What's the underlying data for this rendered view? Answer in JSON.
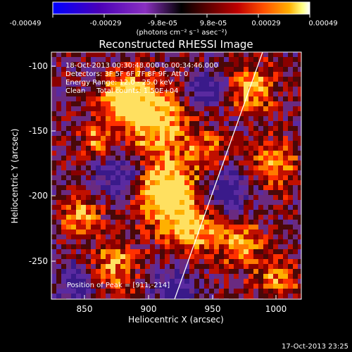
{
  "colorbar": {
    "ticks": [
      "-0.00049",
      "-0.00029",
      "-9.8e-05",
      "9.8e-05",
      "0.00029",
      "0.00049"
    ],
    "unit_label": "(photons cm⁻² s⁻¹ asec⁻²)",
    "range": [
      -0.00049,
      0.00049
    ],
    "colors": [
      "#0000ff",
      "#4a00b8",
      "#8a30c0",
      "#000000",
      "#5a0000",
      "#c00000",
      "#ff5000",
      "#ffb000",
      "#ffff80",
      "#ffffff"
    ]
  },
  "image": {
    "title": "Reconstructed RHESSI Image",
    "annotation_lines": [
      "18-Oct-2013 00:30:48.000 to 00:34:46.000",
      "Detectors: 3F 5F 6F 7F 8F 9F, Att 0",
      "Energy Range: 12.0 - 25.0 keV",
      "Clean     Total counts: 1.50E+04"
    ],
    "peak_label": "Position of Peak = [911,-214]",
    "xlabel": "Heliocentric X (arcsec)",
    "ylabel": "Heliocentric Y (arcsec)",
    "xlim": [
      825,
      1020
    ],
    "ylim": [
      -282,
      -92
    ],
    "xticks": [
      "850",
      "900",
      "950",
      "1000"
    ],
    "yticks": [
      "-100",
      "-150",
      "-200",
      "-250"
    ],
    "limb_color": "#ffffff"
  },
  "footer": {
    "timestamp": "17-Oct-2013 23:25"
  }
}
